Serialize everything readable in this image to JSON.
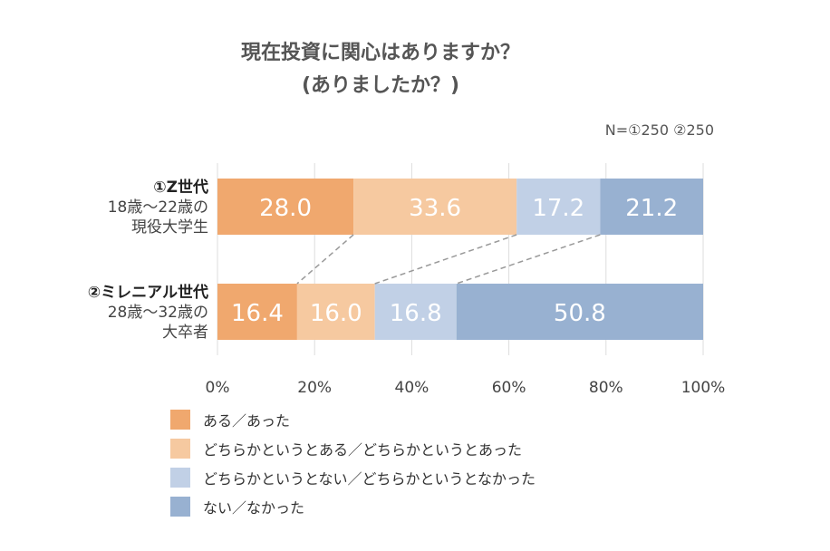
{
  "title_line1": "現在投資に関心はありますか？",
  "title_line2": "(ありましたか？)",
  "sample_note": "N=①250 ②250",
  "chart_data": {
    "type": "bar",
    "orientation": "horizontal-stacked-100",
    "categories": [
      [
        "①Z世代",
        "18歳～22歳の",
        "現役大学生"
      ],
      [
        "②ミレニアル世代",
        "28歳～32歳の",
        "大卒者"
      ]
    ],
    "series": [
      {
        "name": "ある／あった",
        "color": "#f0a86e",
        "values": [
          28.0,
          16.4
        ]
      },
      {
        "name": "どちらかというとある／どちらかというとあった",
        "color": "#f6c9a0",
        "values": [
          33.6,
          16.0
        ]
      },
      {
        "name": "どちらかというとない／どちらかというとなかった",
        "color": "#c1d0e6",
        "values": [
          17.2,
          16.8
        ]
      },
      {
        "name": "ない／なかった",
        "color": "#98b1d1",
        "values": [
          21.2,
          50.8
        ]
      }
    ],
    "xlim": [
      0,
      100
    ],
    "xticks": [
      "0%",
      "20%",
      "40%",
      "60%",
      "80%",
      "100%"
    ],
    "grid": true,
    "legend_position": "bottom"
  }
}
